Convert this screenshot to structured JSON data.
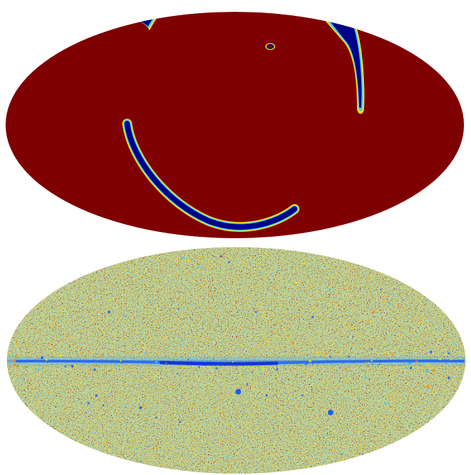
{
  "figure": {
    "projection": "mollweide",
    "colormap": "jet",
    "colors": {
      "background": "#ffffff",
      "high": "#7f0000",
      "red": "#b01010",
      "orange": "#ff8c00",
      "yellow": "#ffe000",
      "cyan": "#3fd0ff",
      "blue": "#1d5cff",
      "low": "#000087"
    },
    "panels": [
      {
        "panel_id": "top",
        "description_features": [
          "southern-arc",
          "eastern-arc",
          "north-west-patch",
          "small-ring"
        ]
      },
      {
        "panel_id": "bottom",
        "description_features": [
          "galactic-plane-band",
          "noise-speckles"
        ]
      }
    ]
  }
}
